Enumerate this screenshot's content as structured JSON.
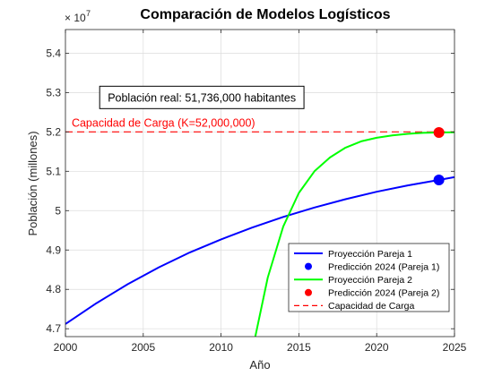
{
  "chart_data": {
    "type": "line",
    "title": "Comparación de Modelos Logísticos",
    "xlabel": "Año",
    "ylabel": "Población (millones)",
    "exponent_label": "× 10",
    "exponent_power": "7",
    "xlim": [
      2000,
      2025
    ],
    "ylim": [
      46800000,
      54600000
    ],
    "xticks": [
      2000,
      2005,
      2010,
      2015,
      2020,
      2025
    ],
    "yticks": [
      47000000,
      48000000,
      49000000,
      50000000,
      51000000,
      52000000,
      53000000,
      54000000
    ],
    "ytick_labels": [
      "4.7",
      "4.8",
      "4.9",
      "5",
      "5.1",
      "5.2",
      "5.3",
      "5.4"
    ],
    "grid": true,
    "series": [
      {
        "name": "Proyección Pareja 1",
        "kind": "line",
        "color": "#0000ff",
        "x": [
          2000,
          2002,
          2004,
          2006,
          2008,
          2010,
          2012,
          2014,
          2016,
          2018,
          2020,
          2022,
          2024,
          2025
        ],
        "y": [
          47120000,
          47650000,
          48130000,
          48560000,
          48940000,
          49270000,
          49570000,
          49840000,
          50080000,
          50290000,
          50480000,
          50640000,
          50780000,
          50850000
        ]
      },
      {
        "name": "Predicción 2024 (Pareja 1)",
        "kind": "marker",
        "color": "#0000ff",
        "x": [
          2024
        ],
        "y": [
          50780000
        ]
      },
      {
        "name": "Proyección Pareja 2",
        "kind": "line",
        "color": "#00ff00",
        "x": [
          2012.2,
          2013,
          2014,
          2015,
          2016,
          2017,
          2018,
          2019,
          2020,
          2021,
          2022,
          2023,
          2024,
          2025
        ],
        "y": [
          46800000,
          48300000,
          49600000,
          50450000,
          51000000,
          51350000,
          51600000,
          51760000,
          51850000,
          51910000,
          51950000,
          51975000,
          51985000,
          51990000
        ]
      },
      {
        "name": "Predicción 2024 (Pareja 2)",
        "kind": "marker",
        "color": "#ff0000",
        "x": [
          2024
        ],
        "y": [
          51985000
        ]
      },
      {
        "name": "Capacidad de Carga",
        "kind": "hline",
        "color": "#ff0000",
        "y": 52000000
      }
    ],
    "annotations": {
      "real_population": "Población real: 51,736,000 habitantes",
      "capacity_label": "Capacidad de Carga (K=52,000,000)"
    },
    "legend_position": "bottom-right"
  }
}
